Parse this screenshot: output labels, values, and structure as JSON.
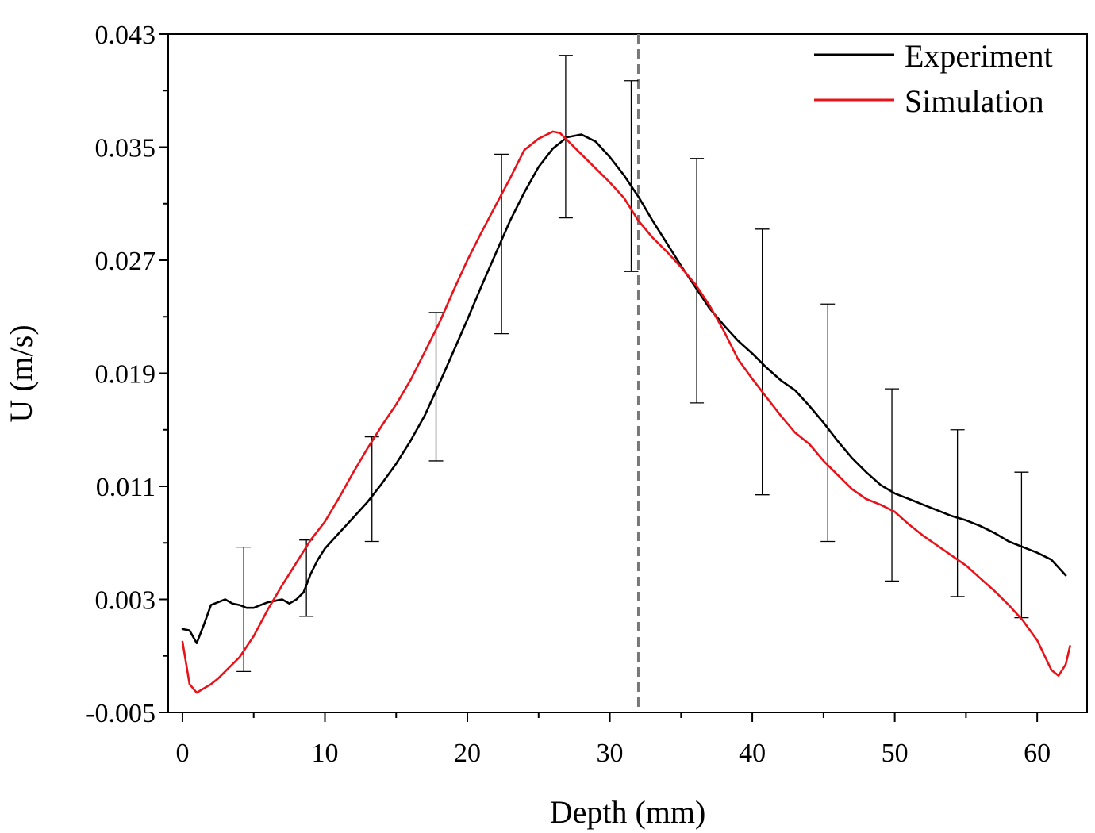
{
  "chart_data": {
    "type": "line",
    "xlabel": "Depth (mm)",
    "ylabel": "U (m/s)",
    "xlim": [
      -1,
      63.5
    ],
    "ylim": [
      -0.005,
      0.043
    ],
    "x_ticks": [
      "0",
      "10",
      "20",
      "30",
      "40",
      "50",
      "60"
    ],
    "y_ticks": [
      "-0.005",
      "0.003",
      "0.011",
      "0.019",
      "0.027",
      "0.035",
      "0.043"
    ],
    "grid": false,
    "legend_position": "top-right",
    "reference_line": {
      "x": 32,
      "style": "dashed",
      "color": "#777777"
    },
    "series": [
      {
        "name": "Experiment",
        "color": "#000000",
        "x": [
          0,
          0.5,
          1,
          1.5,
          2,
          2.5,
          3,
          3.5,
          4,
          4.5,
          5,
          5.5,
          6,
          6.5,
          7,
          7.5,
          8,
          8.5,
          9,
          9.5,
          10,
          11,
          12,
          13,
          14,
          15,
          16,
          17,
          18,
          19,
          20,
          21,
          22,
          23,
          24,
          25,
          26,
          27,
          28,
          29,
          30,
          31,
          32,
          33,
          34,
          35,
          36,
          37,
          38,
          39,
          40,
          41,
          42,
          43,
          44,
          45,
          46,
          47,
          48,
          49,
          50,
          51,
          52,
          53,
          54,
          55,
          56,
          57,
          58,
          59,
          60,
          61,
          62
        ],
        "values": [
          0.0009,
          0.0008,
          -0.0001,
          0.0012,
          0.0026,
          0.0028,
          0.003,
          0.0027,
          0.0026,
          0.0024,
          0.0024,
          0.0026,
          0.0028,
          0.0029,
          0.003,
          0.0027,
          0.003,
          0.0035,
          0.0048,
          0.0058,
          0.0066,
          0.0077,
          0.0088,
          0.0099,
          0.0112,
          0.0126,
          0.0142,
          0.016,
          0.0182,
          0.0205,
          0.0228,
          0.0252,
          0.0275,
          0.0298,
          0.0318,
          0.0336,
          0.0349,
          0.0357,
          0.0359,
          0.0354,
          0.0343,
          0.033,
          0.0315,
          0.0298,
          0.0282,
          0.0266,
          0.0251,
          0.0236,
          0.0224,
          0.0213,
          0.0204,
          0.0194,
          0.0185,
          0.0178,
          0.0167,
          0.0155,
          0.0142,
          0.013,
          0.012,
          0.0111,
          0.0105,
          0.0101,
          0.0097,
          0.0093,
          0.0089,
          0.0086,
          0.0082,
          0.0077,
          0.0071,
          0.0067,
          0.0063,
          0.0058,
          0.0047
        ]
      },
      {
        "name": "Simulation",
        "color": "#e8131a",
        "x": [
          0,
          0.5,
          1,
          1.5,
          2,
          2.5,
          3,
          4,
          5,
          6,
          7,
          8,
          9,
          10,
          11,
          12,
          13,
          14,
          15,
          16,
          17,
          18,
          19,
          20,
          21,
          22,
          23,
          24,
          25,
          26,
          26.5,
          27,
          28,
          29,
          30,
          31,
          32,
          33,
          34,
          35,
          36,
          37,
          38,
          39,
          40,
          41,
          42,
          43,
          44,
          45,
          46,
          47,
          48,
          49,
          50,
          51,
          52,
          53,
          54,
          55,
          56,
          57,
          58,
          59,
          60,
          61,
          61.5,
          62,
          62.3
        ],
        "values": [
          0.0,
          -0.003,
          -0.0036,
          -0.0033,
          -0.003,
          -0.0026,
          -0.0021,
          -0.0011,
          0.0004,
          0.0023,
          0.004,
          0.0056,
          0.0072,
          0.0085,
          0.0102,
          0.012,
          0.0137,
          0.0153,
          0.0168,
          0.0185,
          0.0205,
          0.0225,
          0.0248,
          0.027,
          0.029,
          0.0309,
          0.0328,
          0.0348,
          0.0356,
          0.0361,
          0.036,
          0.0355,
          0.0345,
          0.0335,
          0.0325,
          0.0314,
          0.0298,
          0.0286,
          0.0276,
          0.0265,
          0.0253,
          0.0238,
          0.022,
          0.02,
          0.0186,
          0.0173,
          0.016,
          0.0148,
          0.014,
          0.0128,
          0.0118,
          0.0108,
          0.0101,
          0.0097,
          0.0092,
          0.0083,
          0.0075,
          0.0068,
          0.0061,
          0.0054,
          0.0045,
          0.0036,
          0.0026,
          0.0015,
          0.0001,
          -0.002,
          -0.0024,
          -0.0016,
          -0.0003
        ]
      }
    ],
    "error_bars": {
      "color": "#000000",
      "x": [
        4.3,
        8.7,
        13.3,
        17.8,
        22.4,
        26.9,
        31.5,
        36.1,
        40.7,
        45.3,
        49.8,
        54.4,
        58.9
      ],
      "upper": [
        0.0067,
        0.0072,
        0.0145,
        0.0233,
        0.0345,
        0.0415,
        0.0397,
        0.0342,
        0.0292,
        0.0239,
        0.0179,
        0.015,
        0.012
      ],
      "lower": [
        -0.0021,
        0.0018,
        0.0071,
        0.0128,
        0.0218,
        0.03,
        0.0262,
        0.0169,
        0.0104,
        0.0071,
        0.0043,
        0.0032,
        0.0017
      ]
    }
  }
}
